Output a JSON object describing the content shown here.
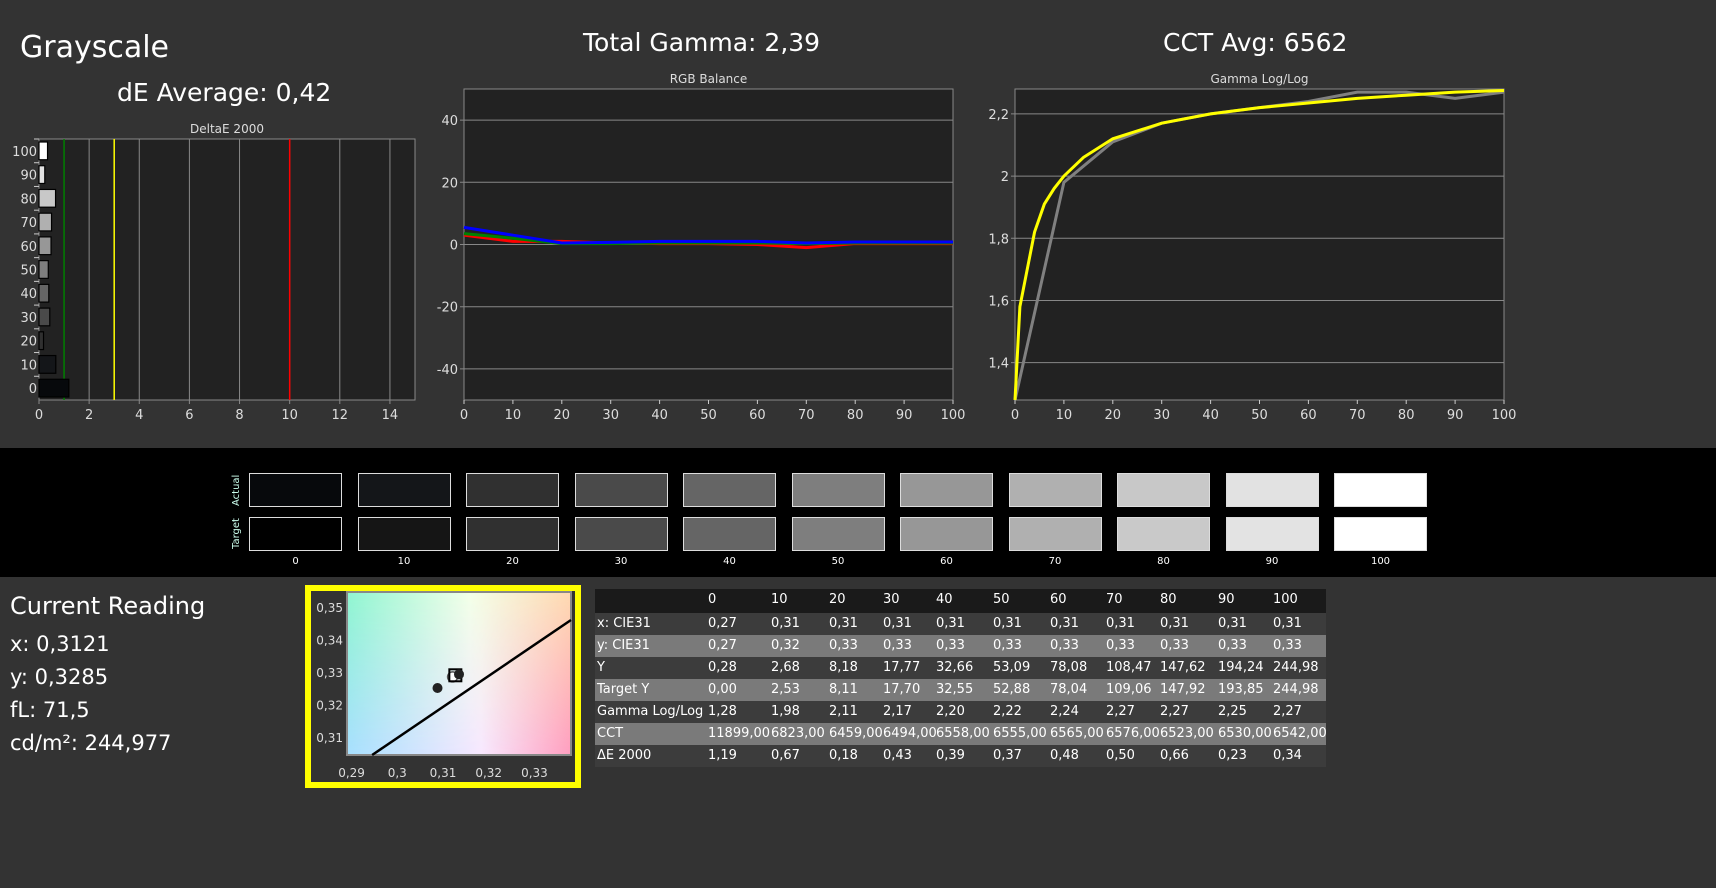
{
  "header": {
    "title": "Grayscale",
    "de_average": "dE Average: 0,42",
    "total_gamma": "Total Gamma: 2,39",
    "cct_avg": "CCT Avg: 6562"
  },
  "colors": {
    "background": "#333333",
    "plot_bg": "#222222",
    "accent_frame": "#ffff00",
    "red": "#ff0000",
    "green": "#008000",
    "blue": "#0000ff",
    "target": "#ffff00",
    "measured": "#808080"
  },
  "chart_data": [
    {
      "type": "bar",
      "title": "DeltaE 2000",
      "orientation": "horizontal",
      "categories": [
        "0",
        "10",
        "20",
        "30",
        "40",
        "50",
        "60",
        "70",
        "80",
        "90",
        "100"
      ],
      "values": [
        1.19,
        0.67,
        0.18,
        0.43,
        0.39,
        0.37,
        0.48,
        0.5,
        0.66,
        0.23,
        0.34
      ],
      "xlim": [
        0,
        15
      ],
      "xticks": [
        "0",
        "2",
        "4",
        "6",
        "8",
        "10",
        "12",
        "14"
      ],
      "yticks": [
        "0",
        "10",
        "20",
        "30",
        "40",
        "50",
        "60",
        "70",
        "80",
        "90",
        "100"
      ],
      "threshold_lines": [
        {
          "value": 1,
          "color": "#008000"
        },
        {
          "value": 3,
          "color": "#ffff00"
        },
        {
          "value": 10,
          "color": "#ff0000"
        }
      ],
      "grid": true
    },
    {
      "type": "line",
      "title": "RGB Balance",
      "x": [
        0,
        10,
        20,
        30,
        40,
        50,
        60,
        70,
        80,
        90,
        100
      ],
      "series": [
        {
          "color": "#ff0000",
          "values": [
            3,
            1,
            1,
            0.5,
            0.3,
            0.3,
            0,
            -1,
            0.3,
            0.3,
            0.3
          ]
        },
        {
          "color": "#008000",
          "values": [
            3.5,
            2,
            0.3,
            0.3,
            0.5,
            0.5,
            0.5,
            0.3,
            0.5,
            0.5,
            0.5
          ]
        },
        {
          "color": "#0000ff",
          "values": [
            5.5,
            3,
            0.5,
            0.7,
            1,
            1,
            1,
            0.5,
            0.8,
            0.8,
            0.8
          ]
        }
      ],
      "ylim": [
        -50,
        50
      ],
      "yticks": [
        "-40",
        "-20",
        "0",
        "20",
        "40"
      ],
      "xticks": [
        "0",
        "10",
        "20",
        "30",
        "40",
        "50",
        "60",
        "70",
        "80",
        "90",
        "100"
      ],
      "grid": true
    },
    {
      "type": "line",
      "title": "Gamma Log/Log",
      "x": [
        0,
        10,
        20,
        30,
        40,
        50,
        60,
        70,
        80,
        90,
        100
      ],
      "series": [
        {
          "color": "#808080",
          "values": [
            1.28,
            1.98,
            2.11,
            2.17,
            2.2,
            2.22,
            2.24,
            2.27,
            2.27,
            2.25,
            2.27
          ]
        },
        {
          "color": "#ffff00",
          "x": [
            0,
            1,
            2,
            4,
            6,
            8,
            10,
            14,
            20,
            30,
            40,
            50,
            60,
            70,
            80,
            90,
            100
          ],
          "values": [
            1.28,
            1.58,
            1.66,
            1.82,
            1.91,
            1.96,
            2.0,
            2.06,
            2.12,
            2.17,
            2.2,
            2.22,
            2.235,
            2.25,
            2.26,
            2.27,
            2.275
          ]
        }
      ],
      "ylim": [
        1.28,
        2.28
      ],
      "yticks": [
        "1,4",
        "1,6",
        "1,8",
        "2",
        "2,2"
      ],
      "xticks": [
        "0",
        "10",
        "20",
        "30",
        "40",
        "50",
        "60",
        "70",
        "80",
        "90",
        "100"
      ],
      "grid": true
    },
    {
      "type": "scatter",
      "title": "",
      "xlim": [
        0.289,
        0.338
      ],
      "ylim": [
        0.3045,
        0.3546
      ],
      "xticks": [
        "0,29",
        "0,3",
        "0,31",
        "0,32",
        "0,33"
      ],
      "yticks": [
        "0,31",
        "0,32",
        "0,33",
        "0,34",
        "0,35"
      ],
      "points": [
        {
          "x": 0.3088,
          "y": 0.3251,
          "kind": "measured"
        },
        {
          "x": 0.3121,
          "y": 0.3285,
          "kind": "current"
        },
        {
          "x": 0.3127,
          "y": 0.329,
          "kind": "target"
        },
        {
          "x": 0.3135,
          "y": 0.3293,
          "kind": "measured"
        }
      ],
      "curve": [
        [
          0.2945,
          0.3045
        ],
        [
          0.338,
          0.346
        ]
      ]
    }
  ],
  "swatches": {
    "actual_label": "Actual",
    "target_label": "Target",
    "levels": [
      "0",
      "10",
      "20",
      "30",
      "40",
      "50",
      "60",
      "70",
      "80",
      "90",
      "100"
    ],
    "actual": [
      "#07090c",
      "#141619",
      "#303030",
      "#4a4a4a",
      "#656565",
      "#7e7e7e",
      "#979797",
      "#b0b0b0",
      "#c8c8c8",
      "#e2e2e2",
      "#ffffff"
    ],
    "target": [
      "#000000",
      "#151515",
      "#303030",
      "#4a4a4a",
      "#656565",
      "#7e7e7e",
      "#979797",
      "#b0b0b0",
      "#c9c9c9",
      "#e3e3e3",
      "#ffffff"
    ]
  },
  "current_reading": {
    "title": "Current Reading",
    "x": "x: 0,3121",
    "y": "y: 0,3285",
    "fl": "fL: 71,5",
    "cdm2": "cd/m²: 244,977"
  },
  "table": {
    "columns": [
      "0",
      "10",
      "20",
      "30",
      "40",
      "50",
      "60",
      "70",
      "80",
      "90",
      "100"
    ],
    "rows": [
      {
        "label": "x: CIE31",
        "values": [
          "0,27",
          "0,31",
          "0,31",
          "0,31",
          "0,31",
          "0,31",
          "0,31",
          "0,31",
          "0,31",
          "0,31",
          "0,31"
        ]
      },
      {
        "label": "y: CIE31",
        "values": [
          "0,27",
          "0,32",
          "0,33",
          "0,33",
          "0,33",
          "0,33",
          "0,33",
          "0,33",
          "0,33",
          "0,33",
          "0,33"
        ]
      },
      {
        "label": "Y",
        "values": [
          "0,28",
          "2,68",
          "8,18",
          "17,77",
          "32,66",
          "53,09",
          "78,08",
          "108,47",
          "147,62",
          "194,24",
          "244,98"
        ]
      },
      {
        "label": "Target Y",
        "values": [
          "0,00",
          "2,53",
          "8,11",
          "17,70",
          "32,55",
          "52,88",
          "78,04",
          "109,06",
          "147,92",
          "193,85",
          "244,98"
        ]
      },
      {
        "label": "Gamma Log/Log",
        "values": [
          "1,28",
          "1,98",
          "2,11",
          "2,17",
          "2,20",
          "2,22",
          "2,24",
          "2,27",
          "2,27",
          "2,25",
          "2,27"
        ]
      },
      {
        "label": "CCT",
        "values": [
          "11899,00",
          "6823,00",
          "6459,00",
          "6494,00",
          "6558,00",
          "6555,00",
          "6565,00",
          "6576,00",
          "6523,00",
          "6530,00",
          "6542,00"
        ]
      },
      {
        "label": "ΔE 2000",
        "values": [
          "1,19",
          "0,67",
          "0,18",
          "0,43",
          "0,39",
          "0,37",
          "0,48",
          "0,50",
          "0,66",
          "0,23",
          "0,34"
        ]
      }
    ]
  }
}
